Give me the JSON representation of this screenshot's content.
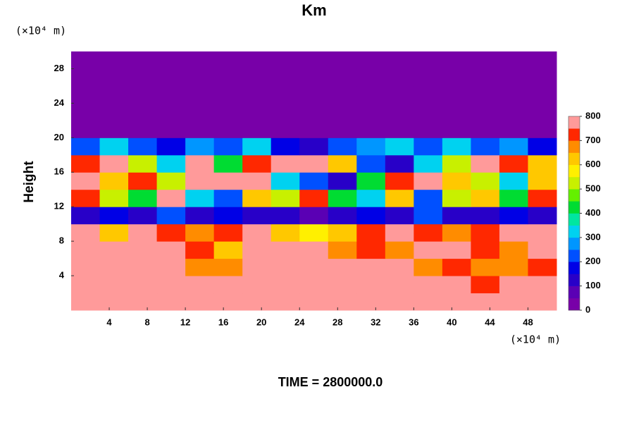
{
  "chart_data": {
    "type": "heatmap",
    "title": "Km",
    "y_label": "Height",
    "y_unit": "(×10⁴ m)",
    "x_unit": "(×10⁴ m)",
    "footer": "TIME = 2800000.0",
    "xlim": [
      0,
      51
    ],
    "ylim": [
      0,
      30
    ],
    "xticks": [
      4,
      8,
      12,
      16,
      20,
      24,
      28,
      32,
      36,
      40,
      44,
      48
    ],
    "yticks": [
      4,
      8,
      12,
      16,
      20,
      24,
      28
    ],
    "xbins": [
      0,
      3,
      6,
      9,
      12,
      15,
      18,
      21,
      24,
      27,
      30,
      33,
      36,
      39,
      42,
      45,
      48,
      51
    ],
    "ybins": [
      0,
      2,
      4,
      6,
      8,
      10,
      12,
      14,
      16,
      18,
      20,
      22,
      24,
      26,
      28,
      30
    ],
    "values": [
      [
        800,
        800,
        750,
        800,
        800,
        800,
        800,
        750,
        800,
        800,
        800,
        800,
        800,
        800,
        750,
        800,
        800
      ],
      [
        800,
        800,
        800,
        800,
        750,
        800,
        800,
        800,
        800,
        800,
        800,
        800,
        750,
        800,
        700,
        750,
        800
      ],
      [
        800,
        800,
        800,
        800,
        650,
        650,
        800,
        800,
        800,
        800,
        800,
        750,
        650,
        700,
        650,
        650,
        700
      ],
      [
        800,
        800,
        800,
        800,
        700,
        600,
        800,
        800,
        800,
        650,
        700,
        650,
        800,
        750,
        700,
        650,
        750
      ],
      [
        750,
        600,
        800,
        700,
        650,
        700,
        750,
        600,
        550,
        600,
        700,
        750,
        700,
        650,
        700,
        750,
        800
      ],
      [
        100,
        150,
        100,
        200,
        100,
        150,
        100,
        100,
        50,
        100,
        150,
        100,
        200,
        100,
        100,
        150,
        100
      ],
      [
        700,
        500,
        400,
        800,
        300,
        200,
        600,
        500,
        700,
        400,
        300,
        600,
        200,
        500,
        600,
        400,
        700
      ],
      [
        800,
        600,
        700,
        500,
        800,
        800,
        800,
        300,
        200,
        100,
        400,
        700,
        800,
        600,
        500,
        300,
        600
      ],
      [
        700,
        800,
        500,
        300,
        800,
        400,
        700,
        800,
        800,
        600,
        200,
        100,
        300,
        500,
        800,
        700,
        600
      ],
      [
        200,
        300,
        200,
        150,
        250,
        200,
        300,
        150,
        100,
        200,
        250,
        300,
        200,
        300,
        200,
        250,
        150
      ],
      [
        0,
        0,
        0,
        0,
        0,
        0,
        0,
        0,
        0,
        0,
        0,
        0,
        0,
        0,
        0,
        0,
        0
      ],
      [
        0,
        0,
        0,
        0,
        0,
        0,
        0,
        0,
        0,
        0,
        0,
        0,
        0,
        0,
        0,
        0,
        0
      ],
      [
        0,
        0,
        0,
        0,
        0,
        0,
        0,
        0,
        0,
        0,
        0,
        0,
        0,
        0,
        0,
        0,
        0
      ],
      [
        0,
        0,
        0,
        0,
        0,
        0,
        0,
        0,
        0,
        0,
        0,
        0,
        0,
        0,
        0,
        0,
        0
      ],
      [
        0,
        0,
        0,
        0,
        0,
        0,
        0,
        0,
        0,
        0,
        0,
        0,
        0,
        0,
        0,
        0,
        0
      ]
    ],
    "colorbar": {
      "levels": [
        0,
        50,
        100,
        150,
        200,
        250,
        300,
        350,
        400,
        450,
        500,
        550,
        600,
        650,
        700,
        750,
        800
      ],
      "colors": [
        "#7800a8",
        "#5a00b4",
        "#2800c8",
        "#0000e6",
        "#0050ff",
        "#0096ff",
        "#00d2f0",
        "#00e6a0",
        "#00dc32",
        "#64f000",
        "#c8f000",
        "#fff000",
        "#ffc800",
        "#ff8c00",
        "#ff2800",
        "#ff9a9a"
      ],
      "ticks": [
        0,
        100,
        200,
        300,
        400,
        500,
        600,
        700,
        800
      ]
    }
  }
}
